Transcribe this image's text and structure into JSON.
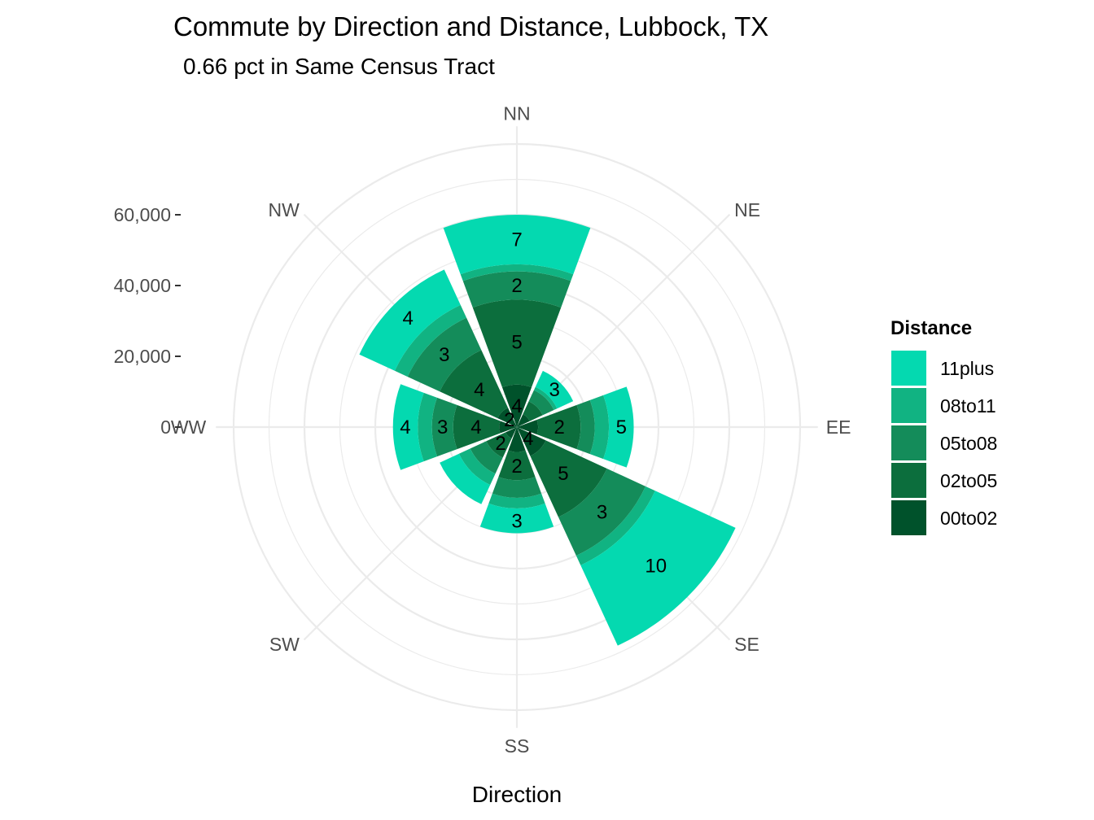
{
  "chart_data": {
    "type": "bar",
    "coord": "polar",
    "title": "Commute by Direction and Distance, Lubbock, TX",
    "subtitle": "0.66 pct in Same Census Tract",
    "xlabel": "Direction",
    "legend_title": "Distance",
    "legend_position": "right",
    "grid": true,
    "categories": [
      "NN",
      "NE",
      "EE",
      "SE",
      "SS",
      "SW",
      "WW",
      "NW"
    ],
    "series": [
      {
        "name": "00to02",
        "color": "#00522b",
        "values": [
          12000,
          4000,
          6000,
          9000,
          7000,
          3500,
          5000,
          6000
        ],
        "labels": [
          "4",
          "",
          "",
          "4",
          "",
          "",
          "",
          "2"
        ]
      },
      {
        "name": "02to05",
        "color": "#0c6e3d",
        "values": [
          24000,
          4000,
          12000,
          19000,
          8000,
          6000,
          13000,
          18000
        ],
        "labels": [
          "5",
          "",
          "2",
          "5",
          "2",
          "2",
          "4",
          "4"
        ]
      },
      {
        "name": "05to08",
        "color": "#148c5a",
        "values": [
          8000,
          3500,
          4000,
          12000,
          5000,
          5000,
          6000,
          10000
        ],
        "labels": [
          "2",
          "",
          "",
          "3",
          "",
          "",
          "3",
          "3"
        ]
      },
      {
        "name": "08to11",
        "color": "#11b382",
        "values": [
          2000,
          1000,
          4000,
          3000,
          3000,
          3500,
          4000,
          4000
        ],
        "labels": [
          "",
          "",
          "",
          "",
          "",
          "",
          "",
          ""
        ]
      },
      {
        "name": "11plus",
        "color": "#04d9b0",
        "values": [
          14000,
          5000,
          7000,
          25000,
          7000,
          6000,
          7000,
          11000
        ],
        "labels": [
          "7",
          "3",
          "5",
          "10",
          "3",
          "",
          "4",
          "4"
        ]
      }
    ],
    "legend_order": [
      "11plus",
      "08to11",
      "05to08",
      "02to05",
      "00to02"
    ],
    "y_ticks": [
      0,
      20000,
      40000,
      60000
    ],
    "y_tick_labels": [
      "0",
      "20,000",
      "40,000",
      "60,000"
    ],
    "ylim": [
      0,
      85000
    ]
  }
}
